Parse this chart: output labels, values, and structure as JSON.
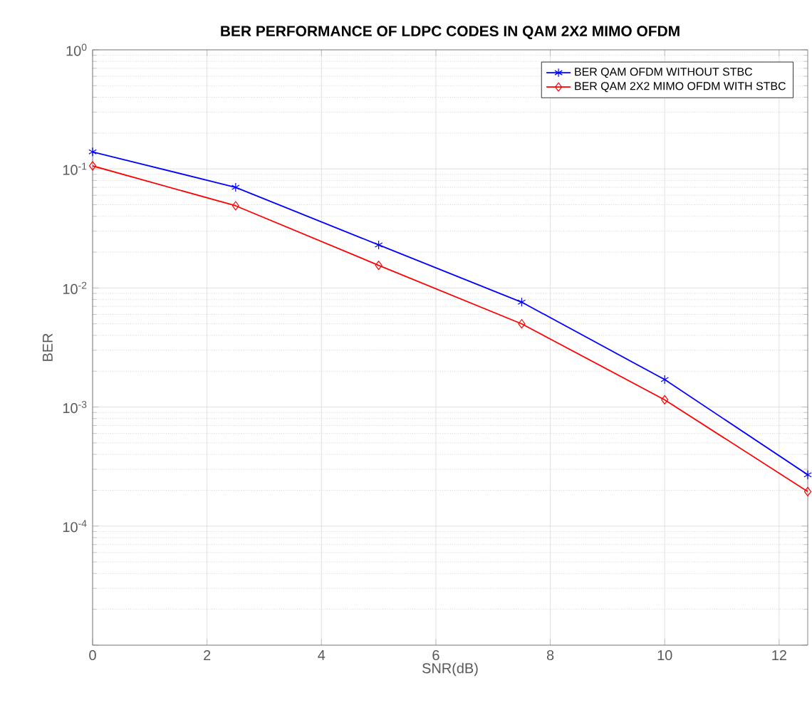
{
  "chart_data": {
    "type": "line",
    "title": "BER PERFORMANCE OF LDPC CODES IN QAM 2X2 MIMO OFDM",
    "xlabel": "SNR(dB)",
    "ylabel": "BER",
    "log": "y",
    "grid": true,
    "legend": "top right",
    "xlim": [
      0,
      12.5
    ],
    "xticks": [
      0,
      2,
      4,
      6,
      8,
      10,
      12
    ],
    "ylim": [
      1e-05,
      1
    ],
    "yticks": [
      {
        "value": 1,
        "label": "10$^{0}$"
      },
      {
        "value": 0.1,
        "label": "10$^{-1}$"
      },
      {
        "value": 0.01,
        "label": "10$^{-2}$"
      },
      {
        "value": 0.001,
        "label": "10$^{-3}$"
      },
      {
        "value": 0.0001,
        "label": "10$^{-4}$"
      },
      {
        "value": 1e-05,
        "label": null
      }
    ],
    "x": [
      0,
      2.5,
      5,
      7.5,
      10,
      12.5
    ],
    "series": [
      {
        "name": "BER QAM OFDM WITHOUT STBC",
        "color": "#0000ff",
        "marker": "cross",
        "values": [
          0.139,
          0.07,
          0.023,
          0.0076,
          0.0017,
          0.00027
        ]
      },
      {
        "name": "BER QAM 2X2 MIMO OFDM WITH STBC",
        "color": "#ff0000",
        "marker": "diamond",
        "values": [
          0.106,
          0.049,
          0.0155,
          0.005,
          0.00115,
          0.000195
        ]
      }
    ]
  }
}
